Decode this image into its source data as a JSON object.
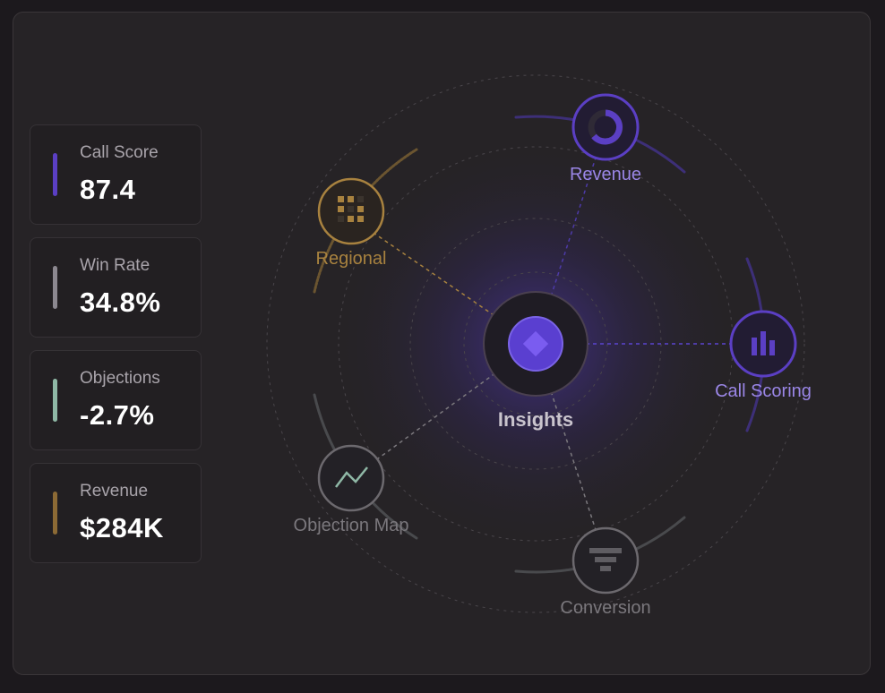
{
  "metrics": [
    {
      "label": "Call Score",
      "value": "87.4",
      "color": "#5b3fc4"
    },
    {
      "label": "Win Rate",
      "value": "34.8%",
      "color": "#8c8890"
    },
    {
      "label": "Objections",
      "value": "-2.7%",
      "color": "#8fb8a6"
    },
    {
      "label": "Revenue",
      "value": "$284K",
      "color": "#8c6a35"
    }
  ],
  "hub": {
    "label": "Insights",
    "icon": "diamond-icon"
  },
  "nodes": {
    "revenue": {
      "label": "Revenue",
      "icon": "donut-icon",
      "color": "#9a86e6"
    },
    "regional": {
      "label": "Regional",
      "icon": "grid-icon",
      "color": "#a8823f"
    },
    "call_scoring": {
      "label": "Call Scoring",
      "icon": "bar-chart-icon",
      "color": "#9a86e6"
    },
    "objection_map": {
      "label": "Objection Map",
      "icon": "trend-line-icon",
      "color": "#7b787d"
    },
    "conversion": {
      "label": "Conversion",
      "icon": "funnel-icon",
      "color": "#7b787d"
    }
  }
}
